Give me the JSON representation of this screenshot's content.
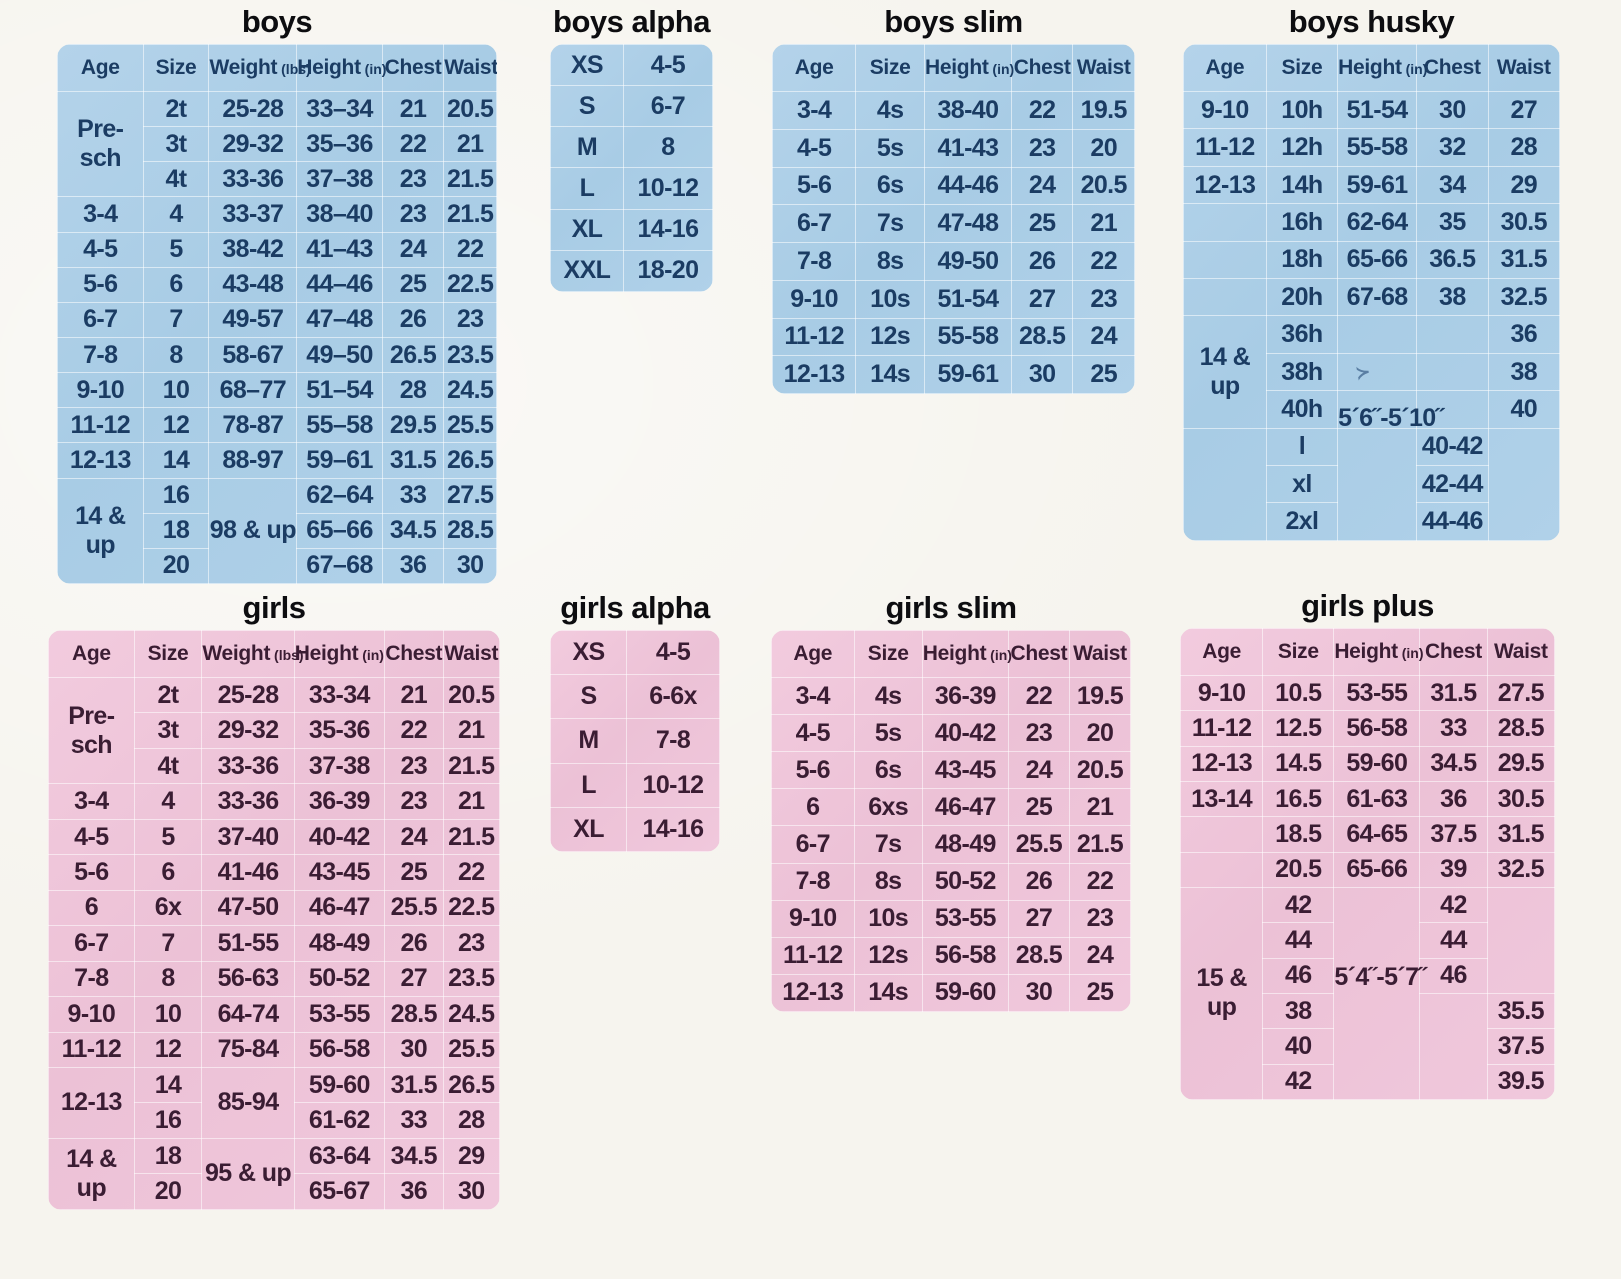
{
  "colors": {
    "page_background": "#f6f4ee",
    "boys_table_background": "#aecfe7",
    "girls_table_background": "#efc6da",
    "boys_text": "#1b3c63",
    "girls_text": "#3a1d33",
    "title_text": "#0d0d10",
    "gridline": "#ffffff"
  },
  "tables": [
    {
      "id": "boys",
      "title": "boys",
      "theme": "blue",
      "headers": [
        {
          "label": "Age"
        },
        {
          "label": "Size"
        },
        {
          "label": "Weight",
          "unit": "(lbs)"
        },
        {
          "label": "Height",
          "unit": "(in)"
        },
        {
          "label": "Chest"
        },
        {
          "label": "Waist"
        }
      ],
      "rows": [
        [
          {
            "t": "Pre-sch",
            "rs": 3
          },
          "2t",
          "25-28",
          "33–34",
          "21",
          "20.5"
        ],
        [
          "3t",
          "29-32",
          "35–36",
          "22",
          "21"
        ],
        [
          "4t",
          "33-36",
          "37–38",
          "23",
          "21.5"
        ],
        [
          "3-4",
          "4",
          "33-37",
          "38–40",
          "23",
          "21.5"
        ],
        [
          "4-5",
          "5",
          "38-42",
          "41–43",
          "24",
          "22"
        ],
        [
          "5-6",
          "6",
          "43-48",
          "44–46",
          "25",
          "22.5"
        ],
        [
          "6-7",
          "7",
          "49-57",
          "47–48",
          "26",
          "23"
        ],
        [
          "7-8",
          "8",
          "58-67",
          "49–50",
          "26.5",
          "23.5"
        ],
        [
          "9-10",
          "10",
          "68–77",
          "51–54",
          "28",
          "24.5"
        ],
        [
          "11-12",
          "12",
          "78-87",
          "55–58",
          "29.5",
          "25.5"
        ],
        [
          "12-13",
          "14",
          "88-97",
          "59–61",
          "31.5",
          "26.5"
        ],
        [
          {
            "t": "14 & up",
            "rs": 3
          },
          "16",
          {
            "t": "98 & up",
            "rs": 3
          },
          "62–64",
          "33",
          "27.5"
        ],
        [
          "18",
          "65–66",
          "34.5",
          "28.5"
        ],
        [
          "20",
          "67–68",
          "36",
          "30"
        ]
      ]
    },
    {
      "id": "boys-alpha",
      "title": "boys alpha",
      "theme": "blue",
      "headers": [],
      "rows": [
        [
          "XS",
          "4-5"
        ],
        [
          "S",
          "6-7"
        ],
        [
          "M",
          "8"
        ],
        [
          "L",
          "10-12"
        ],
        [
          "XL",
          "14-16"
        ],
        [
          "XXL",
          "18-20"
        ]
      ]
    },
    {
      "id": "boys-slim",
      "title": "boys slim",
      "theme": "blue",
      "headers": [
        {
          "label": "Age"
        },
        {
          "label": "Size"
        },
        {
          "label": "Height",
          "unit": "(in)"
        },
        {
          "label": "Chest"
        },
        {
          "label": "Waist"
        }
      ],
      "rows": [
        [
          "3-4",
          "4s",
          "38-40",
          "22",
          "19.5"
        ],
        [
          "4-5",
          "5s",
          "41-43",
          "23",
          "20"
        ],
        [
          "5-6",
          "6s",
          "44-46",
          "24",
          "20.5"
        ],
        [
          "6-7",
          "7s",
          "47-48",
          "25",
          "21"
        ],
        [
          "7-8",
          "8s",
          "49-50",
          "26",
          "22"
        ],
        [
          "9-10",
          "10s",
          "51-54",
          "27",
          "23"
        ],
        [
          "11-12",
          "12s",
          "55-58",
          "28.5",
          "24"
        ],
        [
          "12-13",
          "14s",
          "59-61",
          "30",
          "25"
        ]
      ]
    },
    {
      "id": "boys-husky",
      "title": "boys husky",
      "theme": "blue",
      "headers": [
        {
          "label": "Age"
        },
        {
          "label": "Size"
        },
        {
          "label": "Height",
          "unit": "(in)"
        },
        {
          "label": "Chest"
        },
        {
          "label": "Waist"
        }
      ],
      "rows": [
        [
          "9-10",
          "10h",
          "51-54",
          "30",
          "27"
        ],
        [
          "11-12",
          "12h",
          "55-58",
          "32",
          "28"
        ],
        [
          "12-13",
          "14h",
          "59-61",
          "34",
          "29"
        ],
        [
          "",
          "16h",
          "62-64",
          "35",
          "30.5"
        ],
        [
          "",
          "18h",
          "65-66",
          "36.5",
          "31.5"
        ],
        [
          "",
          "20h",
          "67-68",
          "38",
          "32.5"
        ],
        [
          {
            "t": "14 & up",
            "rs": 3
          },
          "36h",
          "",
          "",
          "36"
        ],
        [
          "38h",
          {
            "t": "",
            "cls": "pen"
          },
          "",
          "38"
        ],
        [
          "40h",
          "",
          "",
          "40"
        ],
        [
          {
            "t": "",
            "rs": 3
          },
          "l",
          {
            "t": "5´6˝-5´10˝",
            "rs": 3,
            "cls": "annot annot-up"
          },
          "40-42",
          {
            "t": "",
            "rs": 3
          }
        ],
        [
          "xl",
          "42-44"
        ],
        [
          "2xl",
          "44-46"
        ]
      ]
    },
    {
      "id": "girls",
      "title": "girls",
      "theme": "pink",
      "headers": [
        {
          "label": "Age"
        },
        {
          "label": "Size"
        },
        {
          "label": "Weight",
          "unit": "(lbs)"
        },
        {
          "label": "Height",
          "unit": "(in)"
        },
        {
          "label": "Chest"
        },
        {
          "label": "Waist"
        }
      ],
      "rows": [
        [
          {
            "t": "Pre-sch",
            "rs": 3
          },
          "2t",
          "25-28",
          "33-34",
          "21",
          "20.5"
        ],
        [
          "3t",
          "29-32",
          "35-36",
          "22",
          "21"
        ],
        [
          "4t",
          "33-36",
          "37-38",
          "23",
          "21.5"
        ],
        [
          "3-4",
          "4",
          "33-36",
          "36-39",
          "23",
          "21"
        ],
        [
          "4-5",
          "5",
          "37-40",
          "40-42",
          "24",
          "21.5"
        ],
        [
          "5-6",
          "6",
          "41-46",
          "43-45",
          "25",
          "22"
        ],
        [
          "6",
          "6x",
          "47-50",
          "46-47",
          "25.5",
          "22.5"
        ],
        [
          "6-7",
          "7",
          "51-55",
          "48-49",
          "26",
          "23"
        ],
        [
          "7-8",
          "8",
          "56-63",
          "50-52",
          "27",
          "23.5"
        ],
        [
          "9-10",
          "10",
          "64-74",
          "53-55",
          "28.5",
          "24.5"
        ],
        [
          "11-12",
          "12",
          "75-84",
          "56-58",
          "30",
          "25.5"
        ],
        [
          {
            "t": "12-13",
            "rs": 2
          },
          "14",
          {
            "t": "85-94",
            "rs": 2
          },
          "59-60",
          "31.5",
          "26.5"
        ],
        [
          "16",
          "61-62",
          "33",
          "28"
        ],
        [
          {
            "t": "14 & up",
            "rs": 2
          },
          "18",
          {
            "t": "95 & up",
            "rs": 2
          },
          "63-64",
          "34.5",
          "29"
        ],
        [
          "20",
          "65-67",
          "36",
          "30"
        ]
      ]
    },
    {
      "id": "girls-alpha",
      "title": "girls alpha",
      "theme": "pink",
      "headers": [],
      "rows": [
        [
          "XS",
          "4-5"
        ],
        [
          "S",
          "6-6x"
        ],
        [
          "M",
          "7-8"
        ],
        [
          "L",
          "10-12"
        ],
        [
          "XL",
          "14-16"
        ]
      ]
    },
    {
      "id": "girls-slim",
      "title": "girls slim",
      "theme": "pink",
      "headers": [
        {
          "label": "Age"
        },
        {
          "label": "Size"
        },
        {
          "label": "Height",
          "unit": "(in)"
        },
        {
          "label": "Chest"
        },
        {
          "label": "Waist"
        }
      ],
      "rows": [
        [
          "3-4",
          "4s",
          "36-39",
          "22",
          "19.5"
        ],
        [
          "4-5",
          "5s",
          "40-42",
          "23",
          "20"
        ],
        [
          "5-6",
          "6s",
          "43-45",
          "24",
          "20.5"
        ],
        [
          "6",
          "6xs",
          "46-47",
          "25",
          "21"
        ],
        [
          "6-7",
          "7s",
          "48-49",
          "25.5",
          "21.5"
        ],
        [
          "7-8",
          "8s",
          "50-52",
          "26",
          "22"
        ],
        [
          "9-10",
          "10s",
          "53-55",
          "27",
          "23"
        ],
        [
          "11-12",
          "12s",
          "56-58",
          "28.5",
          "24"
        ],
        [
          "12-13",
          "14s",
          "59-60",
          "30",
          "25"
        ]
      ]
    },
    {
      "id": "girls-plus",
      "title": "girls plus",
      "theme": "pink",
      "headers": [
        {
          "label": "Age"
        },
        {
          "label": "Size"
        },
        {
          "label": "Height",
          "unit": "(in)"
        },
        {
          "label": "Chest"
        },
        {
          "label": "Waist"
        }
      ],
      "rows": [
        [
          "9-10",
          "10.5",
          "53-55",
          "31.5",
          "27.5"
        ],
        [
          "11-12",
          "12.5",
          "56-58",
          "33",
          "28.5"
        ],
        [
          "12-13",
          "14.5",
          "59-60",
          "34.5",
          "29.5"
        ],
        [
          "13-14",
          "16.5",
          "61-63",
          "36",
          "30.5"
        ],
        [
          "",
          "18.5",
          "64-65",
          "37.5",
          "31.5"
        ],
        [
          "",
          "20.5",
          "65-66",
          "39",
          "32.5"
        ],
        [
          {
            "t": "15 & up",
            "rs": 6
          },
          "42",
          {
            "t": "5´4˝-5´7˝",
            "rs": 6,
            "cls": "annot annot-mid"
          },
          "42",
          {
            "t": "",
            "rs": 3
          }
        ],
        [
          "44",
          "44"
        ],
        [
          "46",
          "46"
        ],
        [
          "38",
          {
            "t": "",
            "rs": 3
          },
          "35.5"
        ],
        [
          "40",
          "37.5"
        ],
        [
          "42",
          "39.5"
        ]
      ]
    }
  ]
}
